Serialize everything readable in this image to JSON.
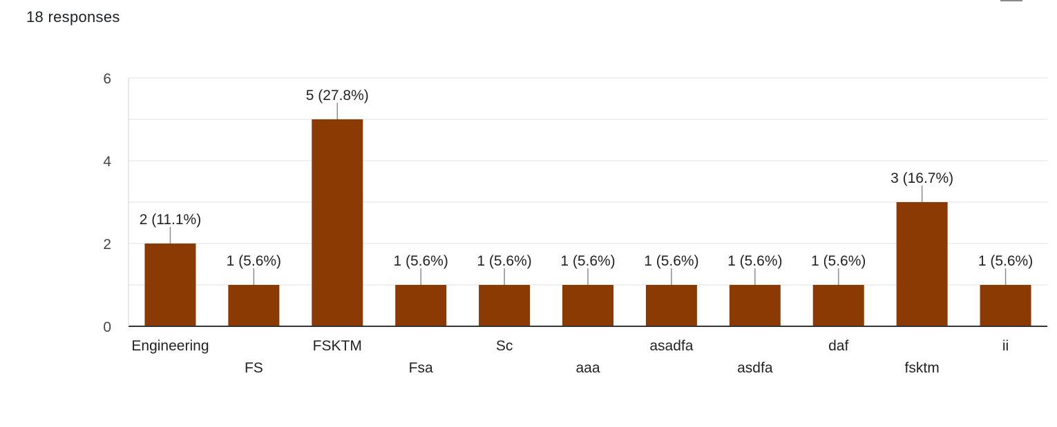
{
  "summary": {
    "responses_label": "18 responses"
  },
  "chart_data": {
    "type": "bar",
    "categories": [
      "Engineering",
      "FS",
      "FSKTM",
      "Fsa",
      "Sc",
      "aaa",
      "asadfa",
      "asdfa",
      "daf",
      "fsktm",
      "ii"
    ],
    "values": [
      2,
      1,
      5,
      1,
      1,
      1,
      1,
      1,
      1,
      3,
      1
    ],
    "data_labels": [
      "2 (11.1%)",
      "1 (5.6%)",
      "5 (27.8%)",
      "1 (5.6%)",
      "1 (5.6%)",
      "1 (5.6%)",
      "1 (5.6%)",
      "1 (5.6%)",
      "1 (5.6%)",
      "3 (16.7%)",
      "1 (5.6%)"
    ],
    "title": "",
    "xlabel": "",
    "ylabel": "",
    "ylim": [
      0,
      6
    ],
    "yticks": [
      0,
      2,
      4,
      6
    ],
    "grid": true,
    "legend": "none",
    "bar_color": "#8b3a04"
  }
}
